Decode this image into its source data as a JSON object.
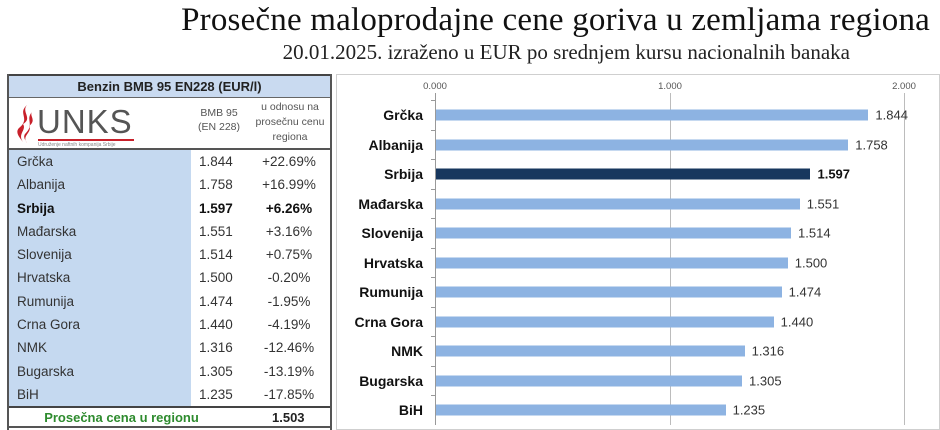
{
  "title": "Prosečne maloprodajne cene goriva u zemljama regiona",
  "subtitle": "20.01.2025. izraženo u EUR po srednjem kursu nacionalnih banaka",
  "table": {
    "header": "Benzin BMB 95 EN228 (EUR/l)",
    "logo": {
      "text": "UNKS",
      "tagline": "Udruženje naftnih kompanija Srbije",
      "icon": "flame-logo-icon",
      "color": "#c8202a"
    },
    "columns": {
      "price": "BMB 95 (EN 228)",
      "price_line1": "BMB 95",
      "price_line2": "(EN 228)",
      "relative_line1": "u odnosu na",
      "relative_line2": "prosečnu cenu",
      "relative_line3": "regiona"
    },
    "rows": [
      {
        "country": "Grčka",
        "price": "1.844",
        "diff": "+22.69%"
      },
      {
        "country": "Albanija",
        "price": "1.758",
        "diff": "+16.99%"
      },
      {
        "country": "Srbija",
        "price": "1.597",
        "diff": "+6.26%",
        "highlight": true
      },
      {
        "country": "Mađarska",
        "price": "1.551",
        "diff": "+3.16%"
      },
      {
        "country": "Slovenija",
        "price": "1.514",
        "diff": "+0.75%"
      },
      {
        "country": "Hrvatska",
        "price": "1.500",
        "diff": "-0.20%"
      },
      {
        "country": "Rumunija",
        "price": "1.474",
        "diff": "-1.95%"
      },
      {
        "country": "Crna Gora",
        "price": "1.440",
        "diff": "-4.19%"
      },
      {
        "country": "NMK",
        "price": "1.316",
        "diff": "-12.46%"
      },
      {
        "country": "Bugarska",
        "price": "1.305",
        "diff": "-13.19%"
      },
      {
        "country": "BiH",
        "price": "1.235",
        "diff": "-17.85%"
      }
    ],
    "footer": {
      "label": "Prosečna cena u regionu",
      "value": "1.503",
      "label_color": "#2e8b2e"
    },
    "colors": {
      "header_bg": "#c9daf0",
      "country_col_bg": "#c5d9f0"
    }
  },
  "chart_data": {
    "type": "bar",
    "orientation": "horizontal",
    "title": "Prosečne maloprodajne cene goriva u zemljama regiona",
    "subtitle": "20.01.2025. izraženo u EUR po srednjem kursu nacionalnih banaka",
    "xlabel": "",
    "ylabel": "",
    "categories": [
      "Grčka",
      "Albanija",
      "Srbija",
      "Mađarska",
      "Slovenija",
      "Hrvatska",
      "Rumunija",
      "Crna Gora",
      "NMK",
      "Bugarska",
      "BiH"
    ],
    "values": [
      1.844,
      1.758,
      1.597,
      1.551,
      1.514,
      1.5,
      1.474,
      1.44,
      1.316,
      1.305,
      1.235
    ],
    "value_labels": [
      "1.844",
      "1.758",
      "1.597",
      "1.551",
      "1.514",
      "1.500",
      "1.474",
      "1.440",
      "1.316",
      "1.305",
      "1.235"
    ],
    "xlim": [
      0,
      2
    ],
    "x_ticks": [
      "0.000",
      "1.000",
      "2.000"
    ],
    "x_axis_position": "top",
    "grid": true,
    "highlight_category": "Srbija",
    "colors": {
      "bar": "#8db3e2",
      "highlight": "#17375e"
    },
    "legend": null
  }
}
